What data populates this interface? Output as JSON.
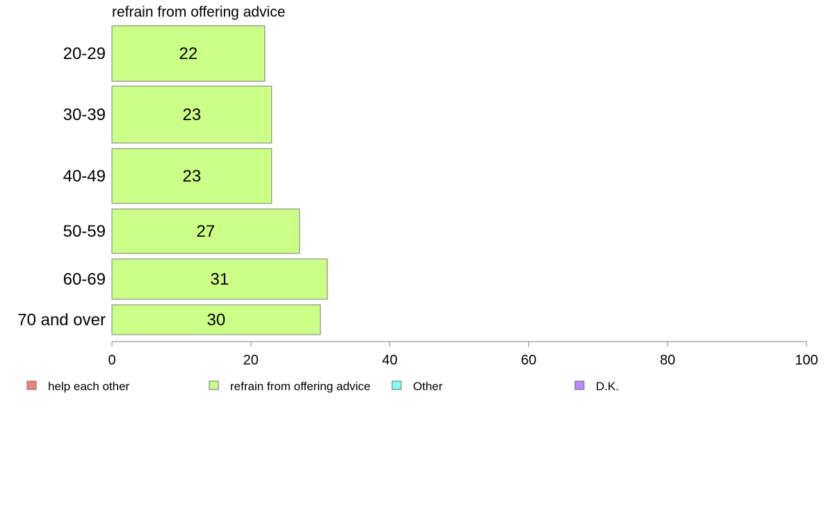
{
  "chart_data": {
    "type": "bar",
    "orientation": "horizontal",
    "title": "refrain from offering advice",
    "categories": [
      "20-29",
      "30-39",
      "40-49",
      "50-59",
      "60-69",
      "70 and over"
    ],
    "values": [
      22,
      23,
      23,
      27,
      31,
      30
    ],
    "xlim": [
      0,
      100
    ],
    "xticks": [
      0,
      20,
      40,
      60,
      80,
      100
    ],
    "bar_color": "#ccff88",
    "bar_stroke": "#7a7a7a",
    "grid": false,
    "legend_position": "bottom",
    "legend": [
      {
        "label": "help each other",
        "color": "#f08080"
      },
      {
        "label": "refrain from offering advice",
        "color": "#ccff88"
      },
      {
        "label": "Other",
        "color": "#88ffee"
      },
      {
        "label": "D.K.",
        "color": "#bb88ff"
      }
    ]
  }
}
